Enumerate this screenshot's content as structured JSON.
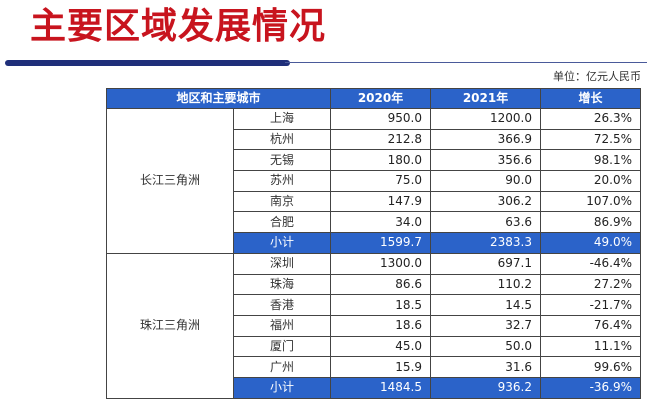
{
  "title": "主要区域发展情况",
  "unit": "单位：亿元人民币",
  "colors": {
    "title": "#c8141e",
    "header_bg": "#2b63c9",
    "rule": "#1f2f7a"
  },
  "table": {
    "headers": [
      "地区和主要城市",
      "2020年",
      "2021年",
      "增长"
    ],
    "groups": [
      {
        "region": "长江三角洲",
        "rows": [
          {
            "city": "上海",
            "y2020": "950.0",
            "y2021": "1200.0",
            "growth": "26.3%"
          },
          {
            "city": "杭州",
            "y2020": "212.8",
            "y2021": "366.9",
            "growth": "72.5%"
          },
          {
            "city": "无锡",
            "y2020": "180.0",
            "y2021": "356.6",
            "growth": "98.1%"
          },
          {
            "city": "苏州",
            "y2020": "75.0",
            "y2021": "90.0",
            "growth": "20.0%"
          },
          {
            "city": "南京",
            "y2020": "147.9",
            "y2021": "306.2",
            "growth": "107.0%"
          },
          {
            "city": "合肥",
            "y2020": "34.0",
            "y2021": "63.6",
            "growth": "86.9%"
          }
        ],
        "subtotal": {
          "city": "小计",
          "y2020": "1599.7",
          "y2021": "2383.3",
          "growth": "49.0%"
        }
      },
      {
        "region": "珠江三角洲",
        "rows": [
          {
            "city": "深圳",
            "y2020": "1300.0",
            "y2021": "697.1",
            "growth": "-46.4%"
          },
          {
            "city": "珠海",
            "y2020": "86.6",
            "y2021": "110.2",
            "growth": "27.2%"
          },
          {
            "city": "香港",
            "y2020": "18.5",
            "y2021": "14.5",
            "growth": "-21.7%"
          },
          {
            "city": "福州",
            "y2020": "18.6",
            "y2021": "32.7",
            "growth": "76.4%"
          },
          {
            "city": "厦门",
            "y2020": "45.0",
            "y2021": "50.0",
            "growth": "11.1%"
          },
          {
            "city": "广州",
            "y2020": "15.9",
            "y2021": "31.6",
            "growth": "99.6%"
          }
        ],
        "subtotal": {
          "city": "小计",
          "y2020": "1484.5",
          "y2021": "936.2",
          "growth": "-36.9%"
        }
      }
    ]
  }
}
